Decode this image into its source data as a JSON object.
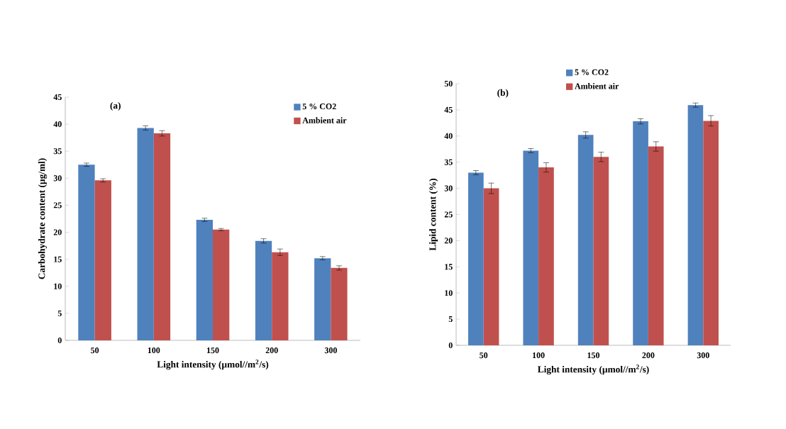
{
  "chart_data": [
    {
      "type": "bar",
      "title": "(a)",
      "xlabel": "Light intensity (µmol//m$^{2}$/s)",
      "ylabel": "Carbohydrate content (µg/ml)",
      "categories": [
        "50",
        "100",
        "150",
        "200",
        "300"
      ],
      "ylim": [
        0,
        45
      ],
      "yticks": [
        0,
        5,
        10,
        15,
        20,
        25,
        30,
        35,
        40,
        45
      ],
      "legend": "top right",
      "series": [
        {
          "name": "5 % CO2",
          "color": "#4f81bd",
          "values": [
            32.5,
            39.3,
            22.3,
            18.4,
            15.2
          ],
          "errors": [
            0.3,
            0.4,
            0.3,
            0.4,
            0.3
          ]
        },
        {
          "name": "Ambient air",
          "color": "#c0504d",
          "values": [
            29.6,
            38.3,
            20.5,
            16.3,
            13.4
          ],
          "errors": [
            0.3,
            0.5,
            0.2,
            0.6,
            0.4
          ]
        }
      ]
    },
    {
      "type": "bar",
      "title": "(b)",
      "xlabel": "Light intensity (µmol//m$^{2}$/s)",
      "ylabel": "Lipid content (%)",
      "categories": [
        "50",
        "100",
        "150",
        "200",
        "300"
      ],
      "ylim": [
        0,
        50
      ],
      "yticks": [
        0,
        5,
        10,
        15,
        20,
        25,
        30,
        35,
        40,
        45,
        50
      ],
      "legend": "top",
      "series": [
        {
          "name": "5 % CO2",
          "color": "#4f81bd",
          "values": [
            33,
            37.2,
            40.2,
            42.8,
            45.9
          ],
          "errors": [
            0.4,
            0.4,
            0.6,
            0.5,
            0.4
          ]
        },
        {
          "name": "Ambient air",
          "color": "#c0504d",
          "values": [
            30,
            34,
            36,
            38,
            42.9
          ],
          "errors": [
            1,
            0.9,
            0.9,
            0.9,
            1
          ]
        }
      ]
    }
  ]
}
